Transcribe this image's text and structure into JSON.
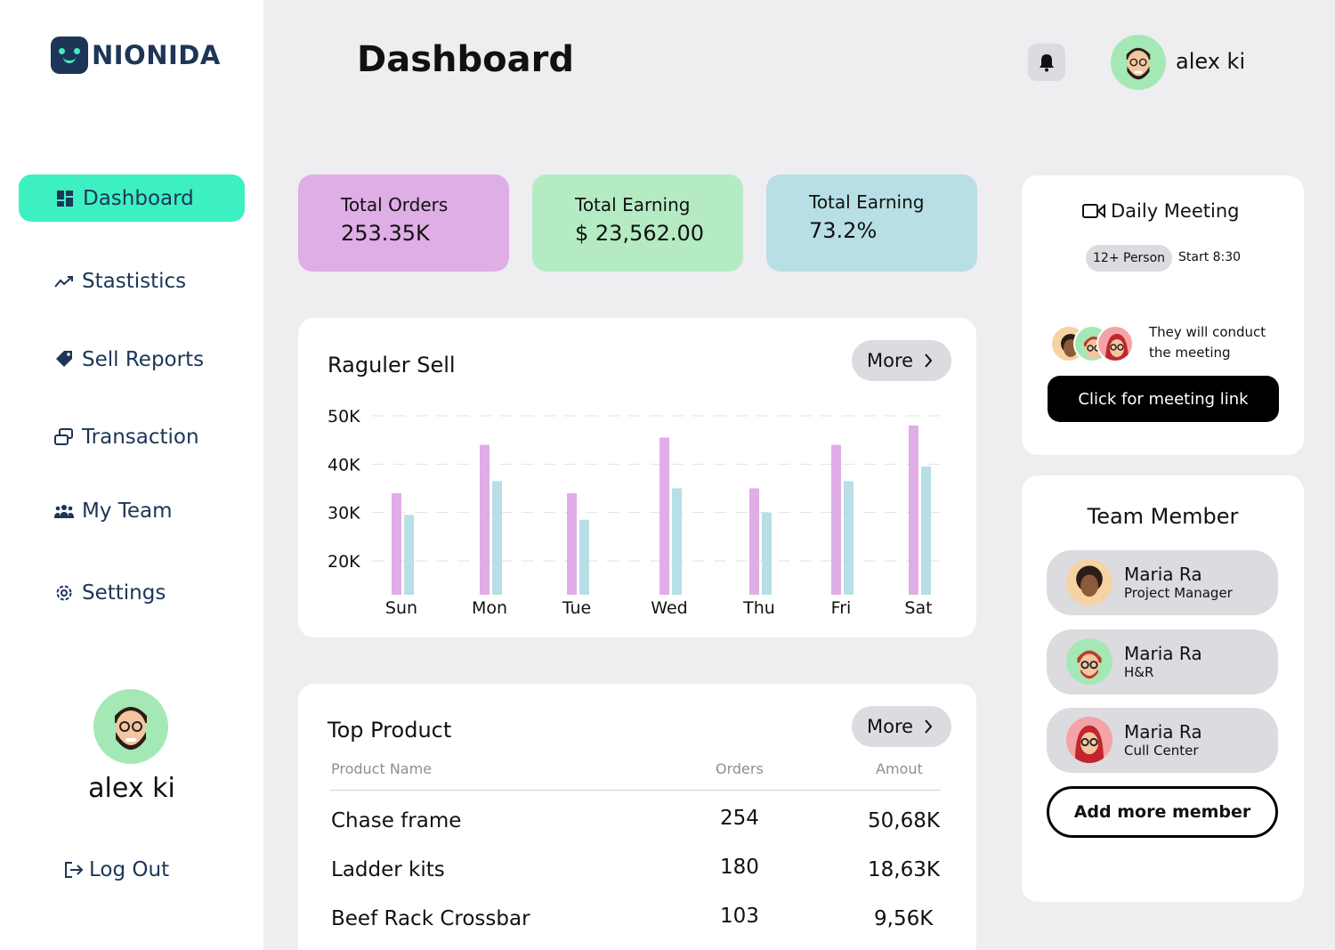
{
  "brand": {
    "name": "NIONIDA",
    "accent": "#3df0c2",
    "navy": "#1d3557"
  },
  "sidebar": {
    "items": [
      {
        "label": "Dashboard",
        "icon": "grid-icon",
        "active": true
      },
      {
        "label": "Stastistics",
        "icon": "trend-icon"
      },
      {
        "label": "Sell Reports",
        "icon": "tag-icon"
      },
      {
        "label": "Transaction",
        "icon": "transfer-icon"
      },
      {
        "label": "My Team",
        "icon": "team-icon"
      },
      {
        "label": "Settings",
        "icon": "gear-icon"
      }
    ],
    "user_name": "alex ki",
    "logout_label": "Log Out"
  },
  "header": {
    "title": "Dashboard",
    "user_name": "alex ki"
  },
  "stats": [
    {
      "label": "Total Orders",
      "value": "253.35K",
      "color": "#dfaee6"
    },
    {
      "label": "Total Earning",
      "value": "$ 23,562.00",
      "color": "#b5ebc3"
    },
    {
      "label": "Total Earning",
      "value": "73.2%",
      "color": "#b7dfe5"
    }
  ],
  "regular_sell": {
    "title": "Raguler Sell",
    "more_label": "More"
  },
  "chart_data": {
    "type": "bar",
    "categories": [
      "Sun",
      "Mon",
      "Tue",
      "Wed",
      "Thu",
      "Fri",
      "Sat"
    ],
    "yticks": [
      "50K",
      "40K",
      "30K",
      "20K"
    ],
    "series": [
      {
        "values": [
          34,
          44,
          34,
          45.5,
          35,
          44,
          48
        ],
        "color": "#dfaee6"
      },
      {
        "values": [
          29.5,
          36.5,
          28.5,
          35,
          30,
          36.5,
          39.5
        ],
        "color": "#b7dfe5"
      }
    ],
    "ylim": [
      13,
      50
    ],
    "grid": "dashed-horizontal"
  },
  "top_product": {
    "title": "Top Product",
    "more_label": "More",
    "columns": [
      "Product Name",
      "Orders",
      "Amout"
    ],
    "rows": [
      {
        "name": "Chase frame",
        "orders": "254",
        "amount": "50,68K"
      },
      {
        "name": "Ladder kits",
        "orders": "180",
        "amount": "18,63K"
      },
      {
        "name": "Beef Rack Crossbar",
        "orders": "103",
        "amount": "9,56K"
      }
    ]
  },
  "meeting": {
    "title": "Daily Meeting",
    "persons": "12+ Person",
    "start": "Start 8:30",
    "note": "They will conduct the meeting",
    "link_label": "Click for meeting link"
  },
  "team": {
    "title": "Team Member",
    "members": [
      {
        "name": "Maria Ra",
        "role": "Project Manager",
        "bg": "#f7d2a3"
      },
      {
        "name": "Maria Ra",
        "role": "H&R",
        "bg": "#a4e8b6"
      },
      {
        "name": "Maria Ra",
        "role": "Cull Center",
        "bg": "#f5a3a6"
      }
    ],
    "add_label": "Add more member"
  }
}
